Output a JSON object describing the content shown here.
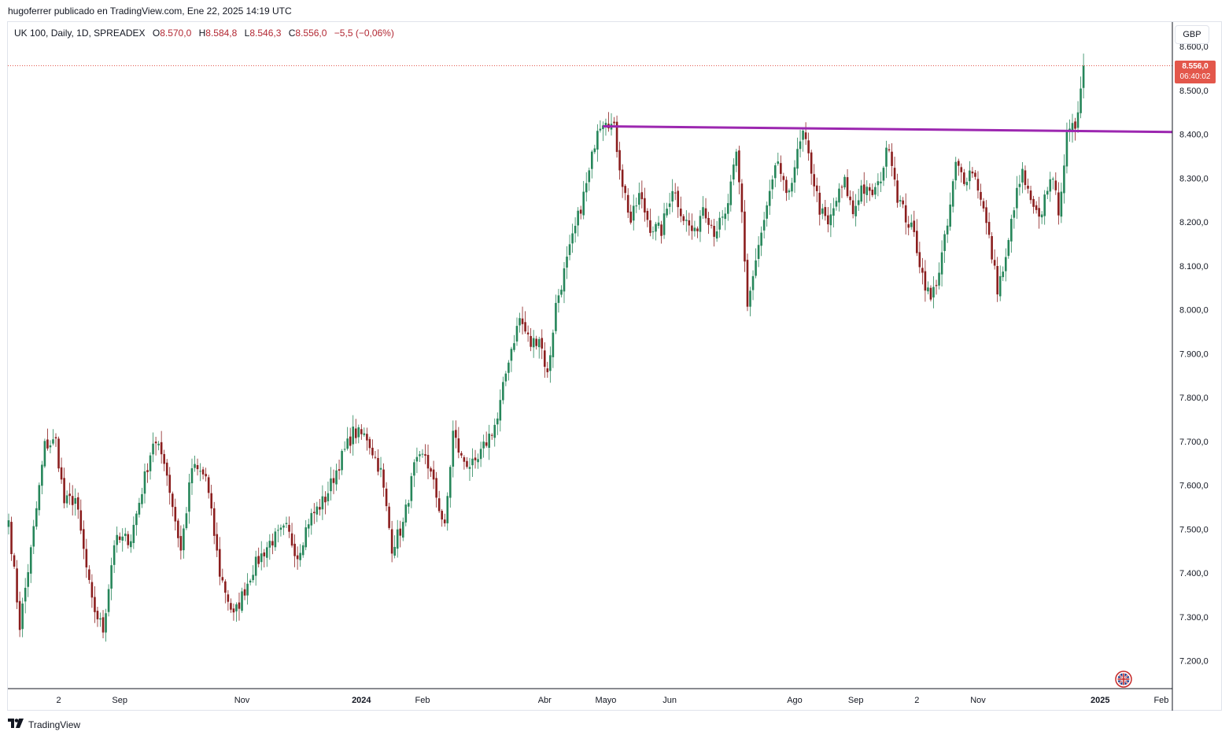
{
  "caption": "hugoferrer publicado en TradingView.com, Ene 22, 2025 14:19 UTC",
  "legend": {
    "symbol": "UK 100, Daily, 1D, SPREADEX",
    "open_label": "O",
    "open": "8.570,0",
    "high_label": "H",
    "high": "8.584,8",
    "low_label": "L",
    "low": "8.546,3",
    "close_label": "C",
    "close": "8.556,0",
    "change": "−5,5 (−0,06%)"
  },
  "currency_button": "GBP",
  "last_price": {
    "price": "8.556,0",
    "countdown": "06:40:02"
  },
  "footer": {
    "brand": "TradingView",
    "logo_icon": "tradingview-logo-icon"
  },
  "flag_icon": "uk-flag-icon",
  "colors": {
    "up": "#26865a",
    "down": "#8b1e1e",
    "trendline": "#9c27b0",
    "price_tag": "#e3574b",
    "grid": "#e0e3eb",
    "text": "#131722"
  },
  "chart_data": {
    "type": "candlestick",
    "ylim": [
      7150,
      8610
    ],
    "y_ticks": [
      {
        "value": 7200,
        "label": "7.200,0"
      },
      {
        "value": 7300,
        "label": "7.300,0"
      },
      {
        "value": 7400,
        "label": "7.400,0"
      },
      {
        "value": 7500,
        "label": "7.500,0"
      },
      {
        "value": 7600,
        "label": "7.600,0"
      },
      {
        "value": 7700,
        "label": "7.700,0"
      },
      {
        "value": 7800,
        "label": "7.800,0"
      },
      {
        "value": 7900,
        "label": "7.900,0"
      },
      {
        "value": 8000,
        "label": "8.000,0"
      },
      {
        "value": 8100,
        "label": "8.100,0"
      },
      {
        "value": 8200,
        "label": "8.200,0"
      },
      {
        "value": 8300,
        "label": "8.300,0"
      },
      {
        "value": 8400,
        "label": "8.400,0"
      },
      {
        "value": 8500,
        "label": "8.500,0"
      },
      {
        "value": 8600,
        "label": "8.600,0"
      }
    ],
    "x_ticks": [
      {
        "label": "2",
        "bold": false,
        "index": 18
      },
      {
        "label": "Sep",
        "bold": false,
        "index": 40
      },
      {
        "label": "Nov",
        "bold": false,
        "index": 84
      },
      {
        "label": "2024",
        "bold": true,
        "index": 127
      },
      {
        "label": "Feb",
        "bold": false,
        "index": 149
      },
      {
        "label": "Abr",
        "bold": false,
        "index": 193
      },
      {
        "label": "Mayo",
        "bold": false,
        "index": 215
      },
      {
        "label": "Jun",
        "bold": false,
        "index": 238
      },
      {
        "label": "Ago",
        "bold": false,
        "index": 283
      },
      {
        "label": "Sep",
        "bold": false,
        "index": 305
      },
      {
        "label": "2",
        "bold": false,
        "index": 327
      },
      {
        "label": "Nov",
        "bold": false,
        "index": 349
      },
      {
        "label": "2025",
        "bold": true,
        "index": 393
      },
      {
        "label": "Feb",
        "bold": false,
        "index": 415
      }
    ],
    "anchors": [
      [
        0,
        7520
      ],
      [
        4,
        7280
      ],
      [
        8,
        7450
      ],
      [
        13,
        7690
      ],
      [
        17,
        7700
      ],
      [
        20,
        7560
      ],
      [
        24,
        7570
      ],
      [
        30,
        7330
      ],
      [
        34,
        7270
      ],
      [
        38,
        7470
      ],
      [
        44,
        7480
      ],
      [
        52,
        7700
      ],
      [
        56,
        7660
      ],
      [
        62,
        7450
      ],
      [
        66,
        7640
      ],
      [
        71,
        7620
      ],
      [
        76,
        7400
      ],
      [
        81,
        7300
      ],
      [
        88,
        7410
      ],
      [
        94,
        7470
      ],
      [
        100,
        7500
      ],
      [
        104,
        7440
      ],
      [
        108,
        7520
      ],
      [
        114,
        7570
      ],
      [
        119,
        7650
      ],
      [
        124,
        7720
      ],
      [
        129,
        7710
      ],
      [
        134,
        7630
      ],
      [
        138,
        7460
      ],
      [
        142,
        7510
      ],
      [
        146,
        7640
      ],
      [
        150,
        7670
      ],
      [
        153,
        7600
      ],
      [
        157,
        7500
      ],
      [
        160,
        7720
      ],
      [
        163,
        7660
      ],
      [
        168,
        7640
      ],
      [
        172,
        7700
      ],
      [
        176,
        7750
      ],
      [
        180,
        7890
      ],
      [
        184,
        7980
      ],
      [
        188,
        7920
      ],
      [
        191,
        7940
      ],
      [
        194,
        7850
      ],
      [
        197,
        8010
      ],
      [
        201,
        8110
      ],
      [
        205,
        8210
      ],
      [
        209,
        8310
      ],
      [
        212,
        8420
      ],
      [
        215,
        8440
      ],
      [
        218,
        8410
      ],
      [
        221,
        8290
      ],
      [
        224,
        8200
      ],
      [
        227,
        8260
      ],
      [
        231,
        8190
      ],
      [
        235,
        8180
      ],
      [
        239,
        8280
      ],
      [
        243,
        8210
      ],
      [
        247,
        8170
      ],
      [
        250,
        8240
      ],
      [
        254,
        8180
      ],
      [
        258,
        8210
      ],
      [
        262,
        8350
      ],
      [
        264,
        8220
      ],
      [
        266,
        8010
      ],
      [
        269,
        8110
      ],
      [
        273,
        8230
      ],
      [
        277,
        8340
      ],
      [
        280,
        8250
      ],
      [
        283,
        8330
      ],
      [
        286,
        8400
      ],
      [
        289,
        8320
      ],
      [
        292,
        8230
      ],
      [
        295,
        8190
      ],
      [
        298,
        8250
      ],
      [
        301,
        8290
      ],
      [
        304,
        8220
      ],
      [
        307,
        8280
      ],
      [
        310,
        8260
      ],
      [
        313,
        8280
      ],
      [
        317,
        8380
      ],
      [
        320,
        8260
      ],
      [
        323,
        8210
      ],
      [
        326,
        8170
      ],
      [
        329,
        8080
      ],
      [
        332,
        8020
      ],
      [
        335,
        8090
      ],
      [
        338,
        8190
      ],
      [
        341,
        8330
      ],
      [
        344,
        8300
      ],
      [
        347,
        8320
      ],
      [
        350,
        8260
      ],
      [
        353,
        8160
      ],
      [
        356,
        8050
      ],
      [
        359,
        8110
      ],
      [
        362,
        8240
      ],
      [
        365,
        8310
      ],
      [
        368,
        8240
      ],
      [
        371,
        8200
      ],
      [
        375,
        8310
      ],
      [
        378,
        8230
      ],
      [
        381,
        8390
      ],
      [
        384,
        8420
      ],
      [
        385,
        8460
      ],
      [
        386,
        8520
      ],
      [
        387,
        8556
      ]
    ],
    "trendline": {
      "from_index": 214,
      "from_value": 8418,
      "to_index": 397,
      "to_value": 8405,
      "color": "#9c27b0"
    },
    "last_price_line": 8556
  }
}
